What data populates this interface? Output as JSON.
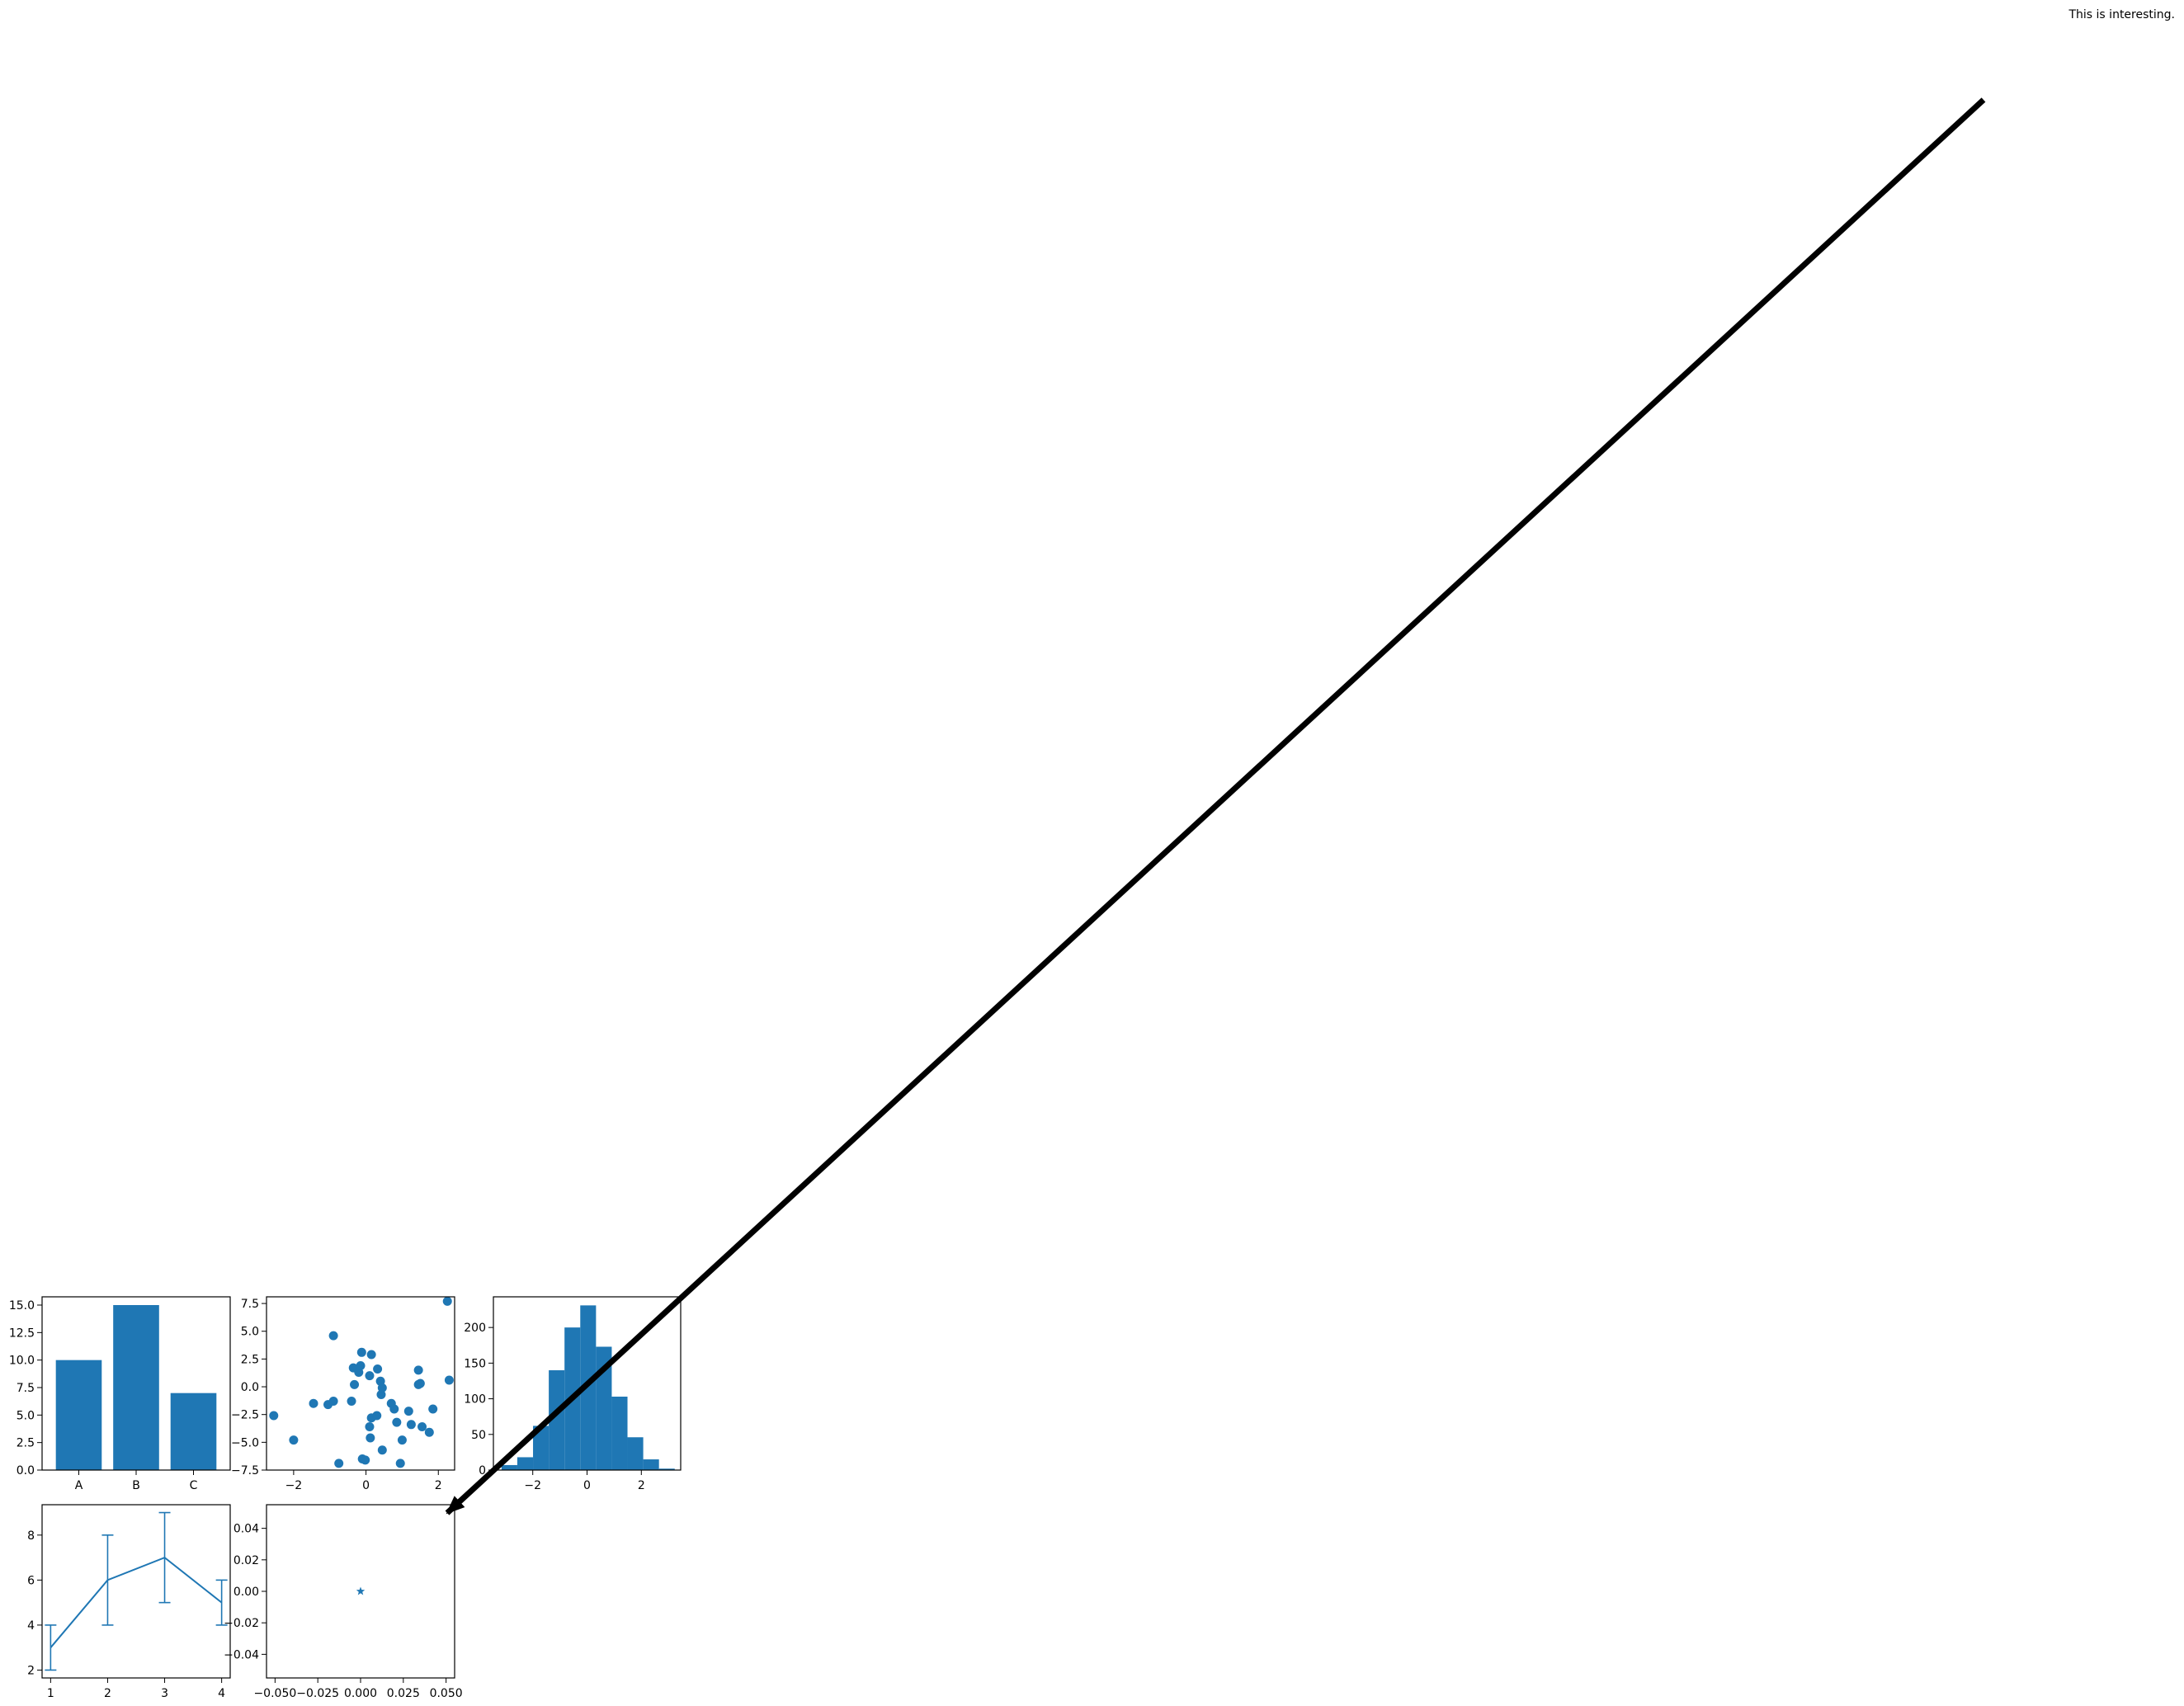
{
  "figure": {
    "annotation_text": "This is interesting.",
    "series_color": "#1f77b4",
    "arrow_color": "#000000"
  },
  "chart_data": [
    {
      "type": "bar",
      "categories": [
        "A",
        "B",
        "C"
      ],
      "values": [
        10,
        15,
        7
      ],
      "ylim": [
        0,
        15.75
      ],
      "yticks": [
        "0.0",
        "2.5",
        "5.0",
        "7.5",
        "10.0",
        "12.5",
        "15.0"
      ],
      "grid": false
    },
    {
      "type": "scatter",
      "xlim": [
        -2.75,
        2.45
      ],
      "ylim": [
        -7.5,
        8.1
      ],
      "xticks": [
        "−2",
        "0",
        "2"
      ],
      "yticks": [
        "−7.5",
        "−5.0",
        "−2.5",
        "0.0",
        "2.5",
        "5.0",
        "7.5"
      ],
      "points": [
        [
          -2.55,
          -2.6
        ],
        [
          -2.0,
          -4.8
        ],
        [
          -1.45,
          -1.5
        ],
        [
          -1.05,
          -1.6
        ],
        [
          -0.9,
          -1.3
        ],
        [
          -0.9,
          4.6
        ],
        [
          -0.75,
          -6.9
        ],
        [
          -0.4,
          -1.3
        ],
        [
          -0.35,
          1.7
        ],
        [
          -0.32,
          0.2
        ],
        [
          -0.2,
          1.3
        ],
        [
          -0.15,
          1.9
        ],
        [
          -0.12,
          3.1
        ],
        [
          -0.1,
          -6.5
        ],
        [
          -0.02,
          -6.6
        ],
        [
          0.1,
          1.0
        ],
        [
          0.1,
          -3.6
        ],
        [
          0.12,
          -4.6
        ],
        [
          0.15,
          2.9
        ],
        [
          0.15,
          -2.8
        ],
        [
          0.3,
          -2.6
        ],
        [
          0.32,
          1.6
        ],
        [
          0.4,
          0.5
        ],
        [
          0.42,
          -0.7
        ],
        [
          0.45,
          -0.1
        ],
        [
          0.45,
          -5.7
        ],
        [
          0.7,
          -1.5
        ],
        [
          0.78,
          -2.0
        ],
        [
          0.85,
          -3.2
        ],
        [
          0.95,
          -6.9
        ],
        [
          1.0,
          -4.8
        ],
        [
          1.18,
          -2.2
        ],
        [
          1.25,
          -3.4
        ],
        [
          1.45,
          1.5
        ],
        [
          1.45,
          0.2
        ],
        [
          1.5,
          0.3
        ],
        [
          1.55,
          -3.6
        ],
        [
          1.75,
          -4.1
        ],
        [
          1.85,
          -2.0
        ],
        [
          2.25,
          7.7
        ],
        [
          2.3,
          0.6
        ]
      ],
      "grid": false
    },
    {
      "type": "bar",
      "subtype": "histogram",
      "xlim": [
        -3.45,
        3.45
      ],
      "ylim": [
        0,
        243
      ],
      "xticks": [
        "−2",
        "0",
        "2"
      ],
      "yticks": [
        "0",
        "50",
        "100",
        "150",
        "200"
      ],
      "bins": [
        {
          "x0": -3.15,
          "x1": -2.57,
          "count": 7
        },
        {
          "x0": -2.57,
          "x1": -1.99,
          "count": 18
        },
        {
          "x0": -1.99,
          "x1": -1.41,
          "count": 62
        },
        {
          "x0": -1.41,
          "x1": -0.83,
          "count": 140
        },
        {
          "x0": -0.83,
          "x1": -0.25,
          "count": 200
        },
        {
          "x0": -0.25,
          "x1": 0.33,
          "count": 231
        },
        {
          "x0": 0.33,
          "x1": 0.91,
          "count": 173
        },
        {
          "x0": 0.91,
          "x1": 1.49,
          "count": 103
        },
        {
          "x0": 1.49,
          "x1": 2.07,
          "count": 46
        },
        {
          "x0": 2.07,
          "x1": 2.65,
          "count": 15
        },
        {
          "x0": 2.65,
          "x1": 3.23,
          "count": 2
        }
      ],
      "grid": false
    },
    {
      "type": "line",
      "subtype": "errorbar",
      "x": [
        1,
        2,
        3,
        4
      ],
      "y": [
        3,
        6,
        7,
        5
      ],
      "yerr": [
        1,
        2,
        2,
        1
      ],
      "xlim": [
        0.85,
        4.15
      ],
      "ylim": [
        1.65,
        9.35
      ],
      "xticks": [
        "1",
        "2",
        "3",
        "4"
      ],
      "yticks": [
        "2",
        "4",
        "6",
        "8"
      ],
      "grid": false
    },
    {
      "type": "scatter",
      "marker": "star",
      "points": [
        [
          0,
          0
        ]
      ],
      "xlim": [
        -0.055,
        0.055
      ],
      "ylim": [
        -0.055,
        0.055
      ],
      "xticks": [
        "−0.050",
        "−0.025",
        "0.000",
        "0.025",
        "0.050"
      ],
      "yticks": [
        "−0.04",
        "−0.02",
        "0.00",
        "0.02",
        "0.04"
      ],
      "grid": false
    }
  ]
}
